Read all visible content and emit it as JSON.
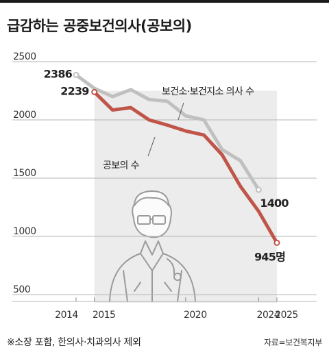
{
  "title": "급감하는 공중보건의사(공보의)",
  "footnote": "※소장 포함, 한의사·치과의사 제외",
  "source": "자료=보건복지부",
  "chart_data": {
    "type": "line",
    "ylim": [
      500,
      2500
    ],
    "yticks": [
      "2500",
      "2000",
      "1500",
      "1000",
      "500"
    ],
    "xticks": [
      "2014",
      "2015",
      "2020",
      "2024",
      "2025"
    ],
    "x": [
      2014,
      2015,
      2016,
      2017,
      2018,
      2019,
      2020,
      2021,
      2022,
      2023,
      2024,
      2025
    ],
    "series": [
      {
        "name": "보건소·보건지소 의사 수",
        "color": "#c0c0c0",
        "x": [
          2014,
          2015,
          2016,
          2017,
          2018,
          2019,
          2020,
          2021,
          2022,
          2023,
          2024
        ],
        "values": [
          2386,
          2271,
          2200,
          2260,
          2175,
          2160,
          2035,
          2000,
          1745,
          1650,
          1400
        ],
        "start_label": "2386",
        "end_label": "1400"
      },
      {
        "name": "공보의 수",
        "color": "#c0554a",
        "x": [
          2015,
          2016,
          2017,
          2018,
          2019,
          2020,
          2021,
          2022,
          2023,
          2024,
          2025
        ],
        "values": [
          2239,
          2085,
          2105,
          2000,
          1955,
          1905,
          1870,
          1700,
          1430,
          1215,
          945
        ],
        "start_label": "2239",
        "end_label": "945명"
      }
    ],
    "shaded_region": {
      "x_from": 2015,
      "x_to": 2025
    }
  }
}
